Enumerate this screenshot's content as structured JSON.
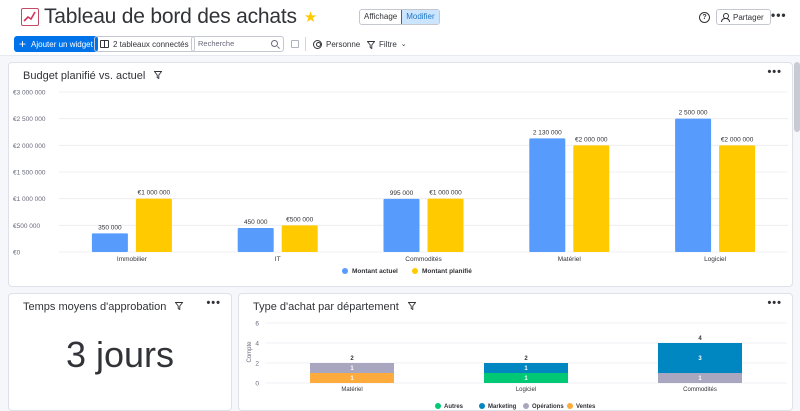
{
  "header": {
    "title": "Tableau de bord des achats",
    "title_icon": "chart-increasing-emoji",
    "mode_view": "Affichage",
    "mode_edit": "Modifier",
    "share_label": "Partager"
  },
  "toolbar": {
    "add_widget": "Ajouter un widget",
    "connected_boards": "2 tableaux connectés",
    "search_placeholder": "Recherche",
    "person_label": "Personne",
    "filter_label": "Filtre"
  },
  "widgets": {
    "budget": {
      "title": "Budget planifié vs. actuel"
    },
    "approval": {
      "title": "Temps moyens d'approbation",
      "value": "3 jours"
    },
    "purchase_type": {
      "title": "Type d'achat par département"
    }
  },
  "colors": {
    "accent": "#0073ea",
    "actual": "#579bfc",
    "planned": "#ffcb00",
    "autres": "#00c875",
    "marketing": "#0086c0",
    "operations": "#a9a7bf",
    "ventes": "#fdab3d"
  },
  "chart_data": [
    {
      "type": "bar",
      "title": "Budget planifié vs. actuel",
      "categories": [
        "Immobilier",
        "IT",
        "Commodités",
        "Matériel",
        "Logiciel"
      ],
      "series": [
        {
          "name": "Montant actuel",
          "values": [
            350000,
            450000,
            995000,
            2130000,
            2500000
          ],
          "labels": [
            "350 000",
            "450 000",
            "995 000",
            "2 130 000",
            "2 500 000"
          ]
        },
        {
          "name": "Montant planifié",
          "values": [
            1000000,
            500000,
            1000000,
            2000000,
            2000000
          ],
          "labels": [
            "€1 000 000",
            "€500 000",
            "€1 000 000",
            "€2 000 000",
            "€2 000 000"
          ]
        }
      ],
      "ylim": [
        0,
        3000000
      ],
      "yticks": [
        "€0",
        "€500 000",
        "€1 000 000",
        "€1 500 000",
        "€2 000 000",
        "€2 500 000",
        "€3 000 000"
      ],
      "legend": "bottom",
      "grid": true
    },
    {
      "type": "bar",
      "stacked": true,
      "title": "Type d'achat par département",
      "ylabel": "Compte",
      "categories": [
        "Matériel",
        "Logiciel",
        "Commodités"
      ],
      "series": [
        {
          "name": "Autres",
          "values": [
            0,
            1,
            0
          ]
        },
        {
          "name": "Marketing",
          "values": [
            0,
            1,
            3
          ]
        },
        {
          "name": "Opérations",
          "values": [
            1,
            0,
            1
          ]
        },
        {
          "name": "Ventes",
          "values": [
            1,
            0,
            0
          ]
        }
      ],
      "totals": [
        2,
        2,
        4
      ],
      "ylim": [
        0,
        6
      ],
      "yticks": [
        "0",
        "2",
        "4",
        "6"
      ],
      "legend": "bottom",
      "grid": true
    }
  ]
}
